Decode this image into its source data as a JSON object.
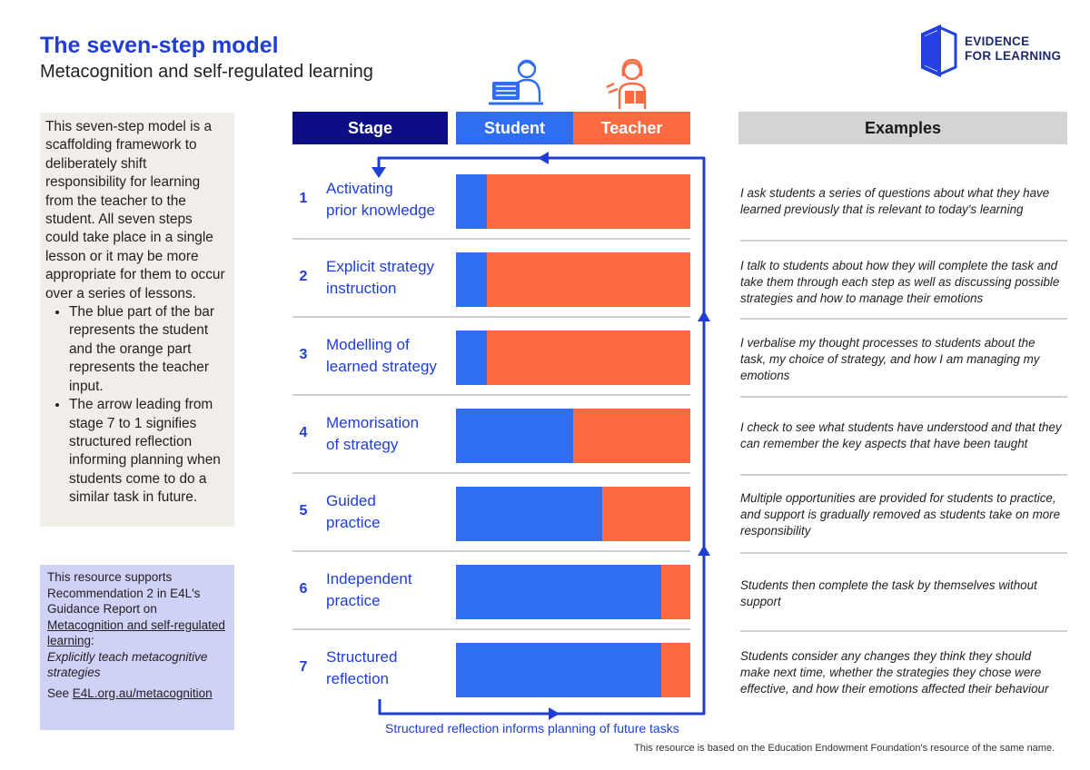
{
  "header": {
    "title": "The seven-step model",
    "subtitle": "Metacognition and self-regulated learning"
  },
  "logo": {
    "line1": "EVIDENCE",
    "line2": "FOR LEARNING",
    "icon": "open-book-logo-icon"
  },
  "intro": {
    "paragraph": "This seven-step model is a scaffolding framework to deliberately shift responsibility for learning from the teacher to the student. All seven steps could take place in a single lesson or it may be more appropriate for them to occur over a series of lessons.",
    "bullets": [
      "The blue part of the bar represents the student and the orange part represents the teacher input.",
      "The arrow leading from stage 7 to 1 signifies structured reflection informing planning when students come to do a similar task in future."
    ]
  },
  "resource": {
    "line1": "This resource supports Recommendation 2 in E4L's Guidance Report on",
    "link": "Metacognition and self-regulated learning",
    "colon": ":",
    "italic": "Explicitly teach metacognitive strategies",
    "see_prefix": "See ",
    "see_link": "E4L.org.au/metacognition"
  },
  "columns": {
    "stage": "Stage",
    "student": "Student",
    "teacher": "Teacher",
    "examples": "Examples"
  },
  "icons": {
    "student": "student-at-computer-icon",
    "teacher": "teacher-reading-icon"
  },
  "colors": {
    "student": "#2f6ef0",
    "teacher": "#fb6a40",
    "stage_header": "#0d0d85",
    "accent": "#1f3ed6",
    "examples_header": "#d4d4d4"
  },
  "steps": [
    {
      "num": "1",
      "line1": "Activating",
      "line2": "prior knowledge",
      "student_share": 0.13,
      "example": "I ask students a series of questions about what they have learned previously that is relevant to today's learning"
    },
    {
      "num": "2",
      "line1": "Explicit strategy",
      "line2": "instruction",
      "student_share": 0.13,
      "example": "I talk to students about how they will complete the task and take them through each step as well as discussing possible strategies and how to manage their emotions"
    },
    {
      "num": "3",
      "line1": "Modelling of",
      "line2": "learned strategy",
      "student_share": 0.13,
      "example": "I verbalise my thought processes to students about the task, my choice of strategy, and how I am managing my emotions"
    },
    {
      "num": "4",
      "line1": "Memorisation",
      "line2": "of strategy",
      "student_share": 0.5,
      "example": "I check to see what students have understood and that they can remember the key aspects that have been taught"
    },
    {
      "num": "5",
      "line1": "Guided",
      "line2": "practice",
      "student_share": 0.625,
      "example": "Multiple opportunities are provided for students to practice, and support is gradually removed as students take on more responsibility"
    },
    {
      "num": "6",
      "line1": "Independent",
      "line2": "practice",
      "student_share": 0.875,
      "example": "Students then complete the task by themselves without support"
    },
    {
      "num": "7",
      "line1": "Structured",
      "line2": "reflection",
      "student_share": 0.875,
      "example": "Students consider any changes they think they should make next time, whether the strategies they chose were effective, and how their emotions affected their behaviour"
    }
  ],
  "arrow_caption": "Structured reflection informs planning of future tasks",
  "footnote": "This resource is based on the Education Endowment Foundation's resource of the same name."
}
